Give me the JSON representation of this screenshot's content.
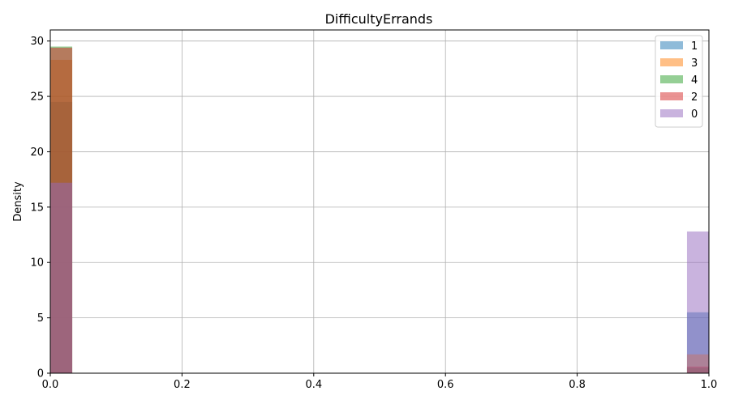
{
  "chart_data": {
    "type": "bar",
    "title": "DifficultyErrands",
    "xlabel": "",
    "ylabel": "Density",
    "xlim": [
      0,
      1
    ],
    "ylim": [
      0,
      31
    ],
    "grid": true,
    "legend_position": "top-right",
    "x_ticks": [
      "0.0",
      "0.2",
      "0.4",
      "0.6",
      "0.8",
      "1.0"
    ],
    "y_ticks": [
      "0",
      "5",
      "10",
      "15",
      "20",
      "25",
      "30"
    ],
    "bin_width": 0.0333,
    "series": [
      {
        "name": "1",
        "color": "#1f77b4",
        "bins": [
          {
            "x0": 0.0,
            "x1": 0.0333,
            "value": 24.5
          },
          {
            "x0": 0.9667,
            "x1": 1.0,
            "value": 5.5
          }
        ]
      },
      {
        "name": "3",
        "color": "#ff7f0e",
        "bins": [
          {
            "x0": 0.0,
            "x1": 0.0333,
            "value": 28.3
          },
          {
            "x0": 0.9667,
            "x1": 1.0,
            "value": 1.7
          }
        ]
      },
      {
        "name": "4",
        "color": "#2ca02c",
        "bins": [
          {
            "x0": 0.0,
            "x1": 0.0333,
            "value": 29.5
          },
          {
            "x0": 0.9667,
            "x1": 1.0,
            "value": 0.5
          }
        ]
      },
      {
        "name": "2",
        "color": "#d62728",
        "bins": [
          {
            "x0": 0.0,
            "x1": 0.0333,
            "value": 29.4
          },
          {
            "x0": 0.9667,
            "x1": 1.0,
            "value": 0.6
          }
        ]
      },
      {
        "name": "0",
        "color": "#9467bd",
        "bins": [
          {
            "x0": 0.0,
            "x1": 0.0333,
            "value": 17.2
          },
          {
            "x0": 0.9667,
            "x1": 1.0,
            "value": 12.8
          }
        ]
      }
    ]
  }
}
